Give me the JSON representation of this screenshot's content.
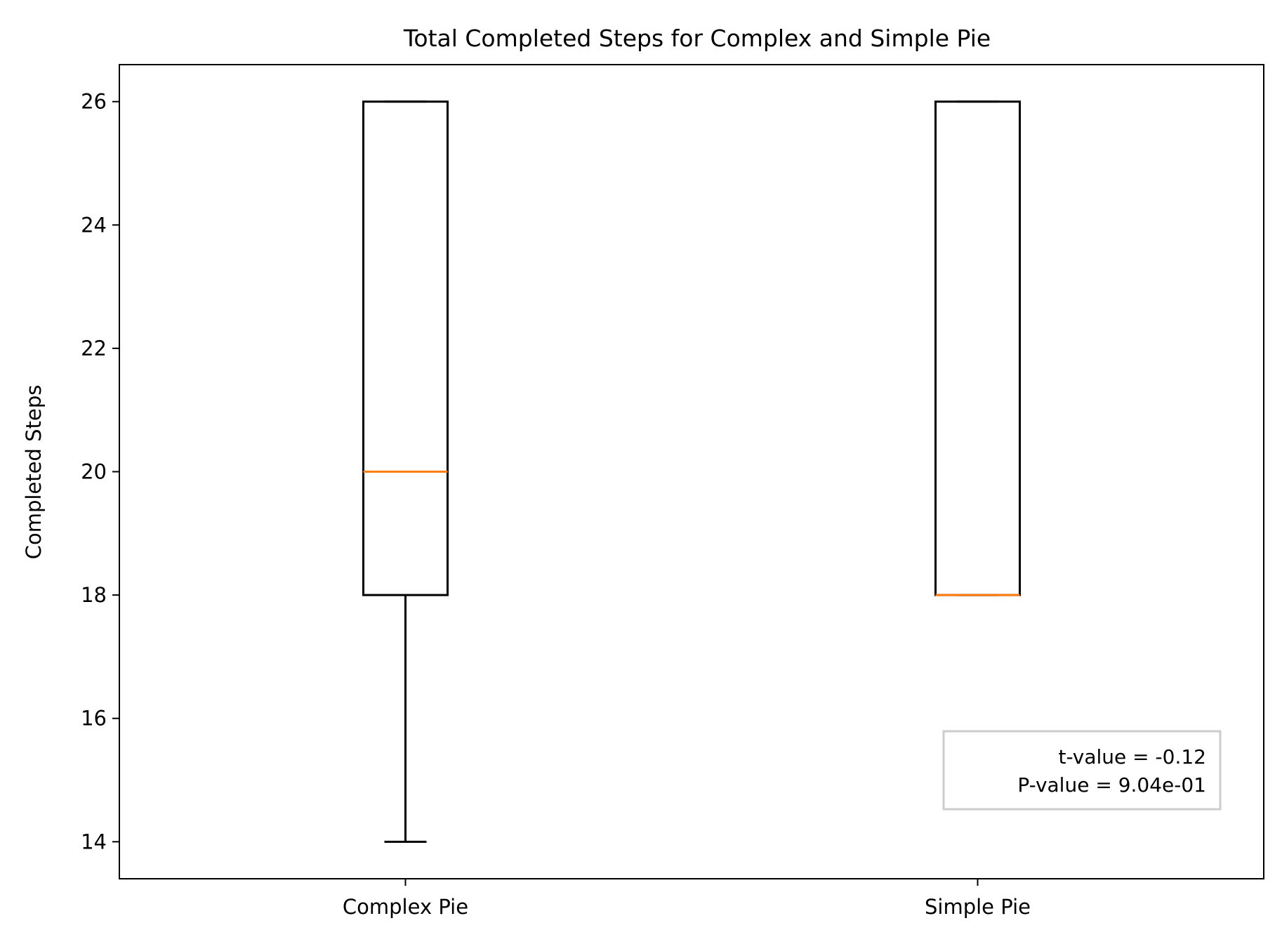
{
  "chart_data": {
    "type": "box",
    "title": "Total Completed Steps for Complex and Simple Pie",
    "xlabel": "",
    "ylabel": "Completed Steps",
    "categories": [
      "Complex Pie",
      "Simple Pie"
    ],
    "boxes": [
      {
        "name": "Complex Pie",
        "whisker_low": 14,
        "q1": 18,
        "median": 20,
        "q3": 26,
        "whisker_high": 26
      },
      {
        "name": "Simple Pie",
        "whisker_low": 18,
        "q1": 18,
        "median": 18,
        "q3": 26,
        "whisker_high": 26
      }
    ],
    "ylim": [
      13.4,
      26.6
    ],
    "yticks": [
      14,
      16,
      18,
      20,
      22,
      24,
      26
    ],
    "grid": false,
    "annotation": {
      "lines": [
        "t-value = -0.12",
        "P-value = 9.04e-01"
      ],
      "placement": "bottom-right"
    },
    "colors": {
      "box": "#000000",
      "median": "#ff7f0e",
      "annotation_border": "#cccccc"
    }
  }
}
